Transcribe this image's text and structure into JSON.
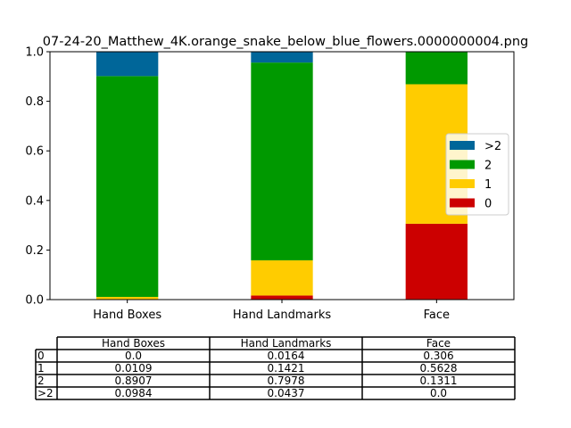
{
  "chart_data": {
    "type": "bar",
    "stacked": true,
    "title": "07-24-20_Matthew_4K.orange_snake_below_blue_flowers.0000000004.png",
    "xlabel": "",
    "ylabel": "",
    "ylim": [
      0,
      1
    ],
    "yticks": [
      "0.0",
      "0.2",
      "0.4",
      "0.6",
      "0.8",
      "1.0"
    ],
    "grid": false,
    "legend_position": "right",
    "categories": [
      "Hand Boxes",
      "Hand Landmarks",
      "Face"
    ],
    "series": [
      {
        "name": "0",
        "color": "#cc0000",
        "values": [
          0.0,
          0.0164,
          0.306
        ]
      },
      {
        "name": "1",
        "color": "#ffcc00",
        "values": [
          0.0109,
          0.1421,
          0.5628
        ]
      },
      {
        "name": "2",
        "color": "#009900",
        "values": [
          0.8907,
          0.7978,
          0.1311
        ]
      },
      {
        "name": ">2",
        "color": "#006699",
        "values": [
          0.0984,
          0.0437,
          0.0
        ]
      }
    ],
    "table": {
      "columns": [
        "Hand Boxes",
        "Hand Landmarks",
        "Face"
      ],
      "rows": [
        {
          "label": "0",
          "cells": [
            "0.0",
            "0.0164",
            "0.306"
          ]
        },
        {
          "label": "1",
          "cells": [
            "0.0109",
            "0.1421",
            "0.5628"
          ]
        },
        {
          "label": "2",
          "cells": [
            "0.8907",
            "0.7978",
            "0.1311"
          ]
        },
        {
          "label": ">2",
          "cells": [
            "0.0984",
            "0.0437",
            "0.0"
          ]
        }
      ]
    }
  }
}
